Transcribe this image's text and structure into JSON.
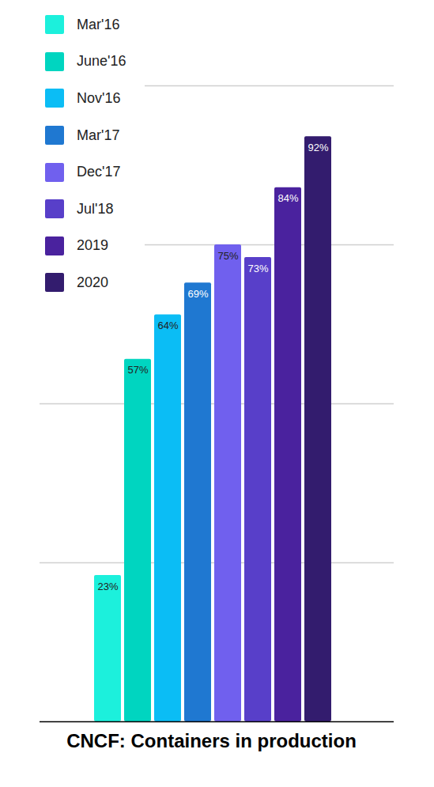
{
  "chart_data": {
    "type": "bar",
    "title": "CNCF: Containers in production",
    "categories": [
      "Mar'16",
      "June'16",
      "Nov'16",
      "Mar'17",
      "Dec'17",
      "Jul'18",
      "2019",
      "2020"
    ],
    "values": [
      23,
      57,
      64,
      69,
      75,
      73,
      84,
      92
    ],
    "value_labels": [
      "23%",
      "57%",
      "64%",
      "69%",
      "75%",
      "73%",
      "84%",
      "92%"
    ],
    "colors": [
      "#1cf0dc",
      "#00d5c0",
      "#0bbdf5",
      "#1f78d1",
      "#7060ee",
      "#583fc9",
      "#4a229e",
      "#331c6e"
    ],
    "ylim": [
      0,
      100
    ],
    "yticks": [
      0,
      25,
      50,
      75,
      100
    ],
    "grid": true,
    "tick_labels": false,
    "data_labels": true,
    "legend": "top-left"
  }
}
